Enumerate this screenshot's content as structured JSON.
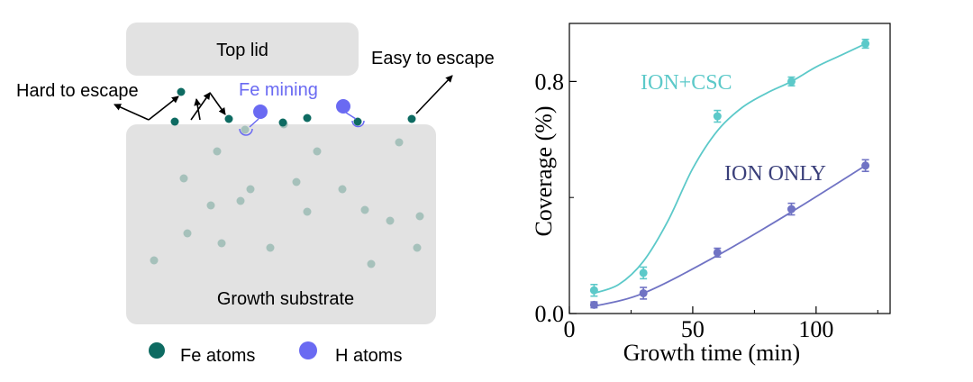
{
  "schematic": {
    "top_lid_label": "Top lid",
    "substrate_label": "Growth substrate",
    "hard_escape_label": "Hard to escape",
    "easy_escape_label": "Easy to escape",
    "fe_mining_label": "Fe mining",
    "legend": [
      {
        "label": "Fe atoms",
        "color": "#0e6b62"
      },
      {
        "label": "H atoms",
        "color": "#6a6af2"
      }
    ],
    "colors": {
      "fe_surface": "#0e6b62",
      "fe_bulk": "#a6c1bb",
      "h_atom": "#6a6af2",
      "block": "#e2e2e2",
      "mining_text": "#6a6af2"
    }
  },
  "chart_data": {
    "type": "line",
    "xlabel": "Growth time (min)",
    "ylabel": "Coverage (%)",
    "xlim": [
      0,
      130
    ],
    "ylim": [
      0,
      1.0
    ],
    "x_ticks": [
      0,
      50,
      100
    ],
    "x_tick_labels": [
      "0",
      "50",
      "100"
    ],
    "y_ticks": [
      0.0,
      0.8
    ],
    "y_tick_labels": [
      "0.0",
      "0.8"
    ],
    "series": [
      {
        "name": "ION+CSC",
        "color": "#5cc9c9",
        "x": [
          10,
          30,
          60,
          90,
          120
        ],
        "y": [
          0.08,
          0.14,
          0.68,
          0.8,
          0.93
        ],
        "err": [
          0.02,
          0.02,
          0.02,
          0.015,
          0.015
        ],
        "fit_x": [
          10,
          20,
          30,
          40,
          50,
          60,
          70,
          80,
          90,
          100,
          110,
          120
        ],
        "fit_y": [
          0.07,
          0.1,
          0.18,
          0.32,
          0.5,
          0.63,
          0.71,
          0.76,
          0.8,
          0.85,
          0.89,
          0.93
        ]
      },
      {
        "name": "ION ONLY",
        "color": "#7073c4",
        "x": [
          10,
          30,
          60,
          90,
          120
        ],
        "y": [
          0.03,
          0.07,
          0.21,
          0.36,
          0.51
        ],
        "err": [
          0.01,
          0.02,
          0.015,
          0.02,
          0.02
        ],
        "fit_x": [
          10,
          30,
          60,
          90,
          120
        ],
        "fit_y": [
          0.025,
          0.07,
          0.2,
          0.35,
          0.51
        ]
      }
    ],
    "series_label_color": {
      "ION+CSC": "#5cc9c9",
      "ION ONLY": "#3a3f7a"
    }
  }
}
